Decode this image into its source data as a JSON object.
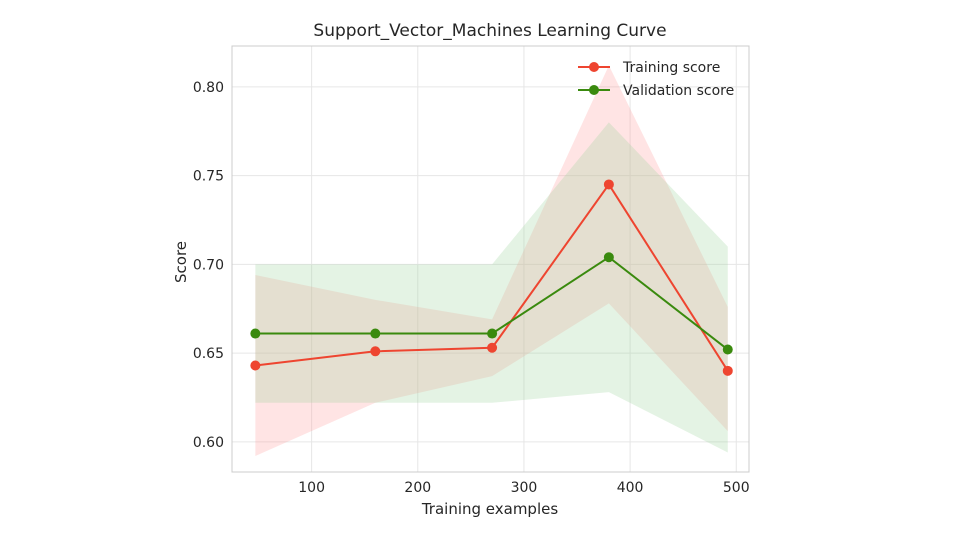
{
  "chart_data": {
    "type": "line",
    "title": "Support_Vector_Machines Learning Curve",
    "xlabel": "Training examples",
    "ylabel": "Score",
    "xlim": [
      25,
      512
    ],
    "ylim": [
      0.583,
      0.823
    ],
    "xticks": [
      100,
      200,
      300,
      400,
      500
    ],
    "xtick_labels": [
      "100",
      "200",
      "300",
      "400",
      "500"
    ],
    "yticks": [
      0.6,
      0.65,
      0.7,
      0.75,
      0.8
    ],
    "ytick_labels": [
      "0.60",
      "0.65",
      "0.70",
      "0.75",
      "0.80"
    ],
    "grid": true,
    "legend_position": "top-right",
    "x": [
      47,
      160,
      270,
      380,
      492
    ],
    "series": [
      {
        "name": "Training score",
        "color": "#ee4530",
        "values": [
          0.643,
          0.651,
          0.653,
          0.745,
          0.64
        ],
        "band_lower": [
          0.592,
          0.622,
          0.637,
          0.678,
          0.606
        ],
        "band_upper": [
          0.694,
          0.68,
          0.669,
          0.812,
          0.676
        ],
        "band_color": "#ff9f9f"
      },
      {
        "name": "Validation score",
        "color": "#3a8a0e",
        "values": [
          0.661,
          0.661,
          0.661,
          0.704,
          0.652
        ],
        "band_lower": [
          0.622,
          0.622,
          0.622,
          0.628,
          0.594
        ],
        "band_upper": [
          0.7,
          0.7,
          0.7,
          0.78,
          0.71
        ],
        "band_color": "#9fd59f"
      }
    ]
  }
}
